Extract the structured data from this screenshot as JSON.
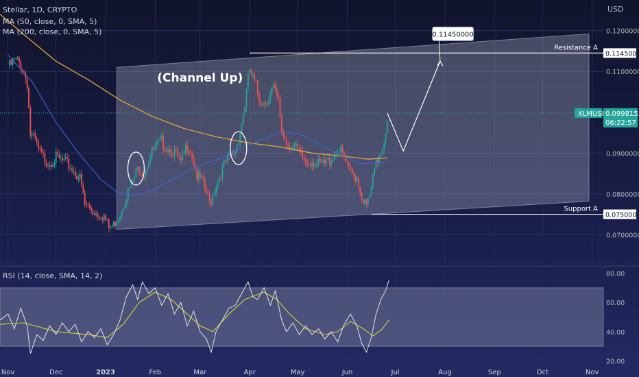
{
  "header": {
    "symbol_line": "Stellar, 1D, CRYPTO",
    "ma50_line": "MA (50, close, 0, SMA, 5)",
    "ma200_line": "MA (200, close, 0, SMA, 5)",
    "currency": "USD"
  },
  "rsi_header": "RSI (14, close, SMA, 14, 2)",
  "colors": {
    "background": "#151a3a",
    "up_candle": "#26a69a",
    "down_candle": "#ef5350",
    "ma50": "#3f63d8",
    "ma200": "#e8a33a",
    "rsi_line": "#e6e6e6",
    "rsi_ma": "#d9d230",
    "channel_fill": "#b4b9cc",
    "price_badge": "#26a69a"
  },
  "chart_data": [
    {
      "type": "candlestick",
      "title": "",
      "x_tick_labels": [
        "Nov",
        "Dec",
        "2023",
        "Feb",
        "Mar",
        "Apr",
        "May",
        "Jun",
        "Jul",
        "Aug",
        "Sep",
        "Oct",
        "Nov"
      ],
      "x_tick_days": [
        0,
        30,
        61,
        92,
        120,
        151,
        181,
        212,
        242,
        273,
        304,
        334,
        365
      ],
      "y_tick_labels": [
        "0.12000000",
        "0.11000000",
        "0.09000000",
        "0.08000000",
        "0.07000000"
      ],
      "y_ticks": [
        0.12,
        0.11,
        0.09,
        0.08,
        0.07
      ],
      "ylim": [
        0.0625,
        0.1275
      ],
      "xlim_days": [
        -5,
        372
      ],
      "ohlc_points": [
        {
          "day": 0,
          "close": 0.1115
        },
        {
          "day": 4,
          "close": 0.1135
        },
        {
          "day": 8,
          "close": 0.1128
        },
        {
          "day": 12,
          "close": 0.1085
        },
        {
          "day": 14,
          "close": 0.0955
        },
        {
          "day": 17,
          "close": 0.0935
        },
        {
          "day": 20,
          "close": 0.0905
        },
        {
          "day": 25,
          "close": 0.0885
        },
        {
          "day": 30,
          "close": 0.0895
        },
        {
          "day": 35,
          "close": 0.0885
        },
        {
          "day": 40,
          "close": 0.087
        },
        {
          "day": 45,
          "close": 0.0845
        },
        {
          "day": 48,
          "close": 0.078
        },
        {
          "day": 52,
          "close": 0.0768
        },
        {
          "day": 56,
          "close": 0.0758
        },
        {
          "day": 60,
          "close": 0.0752
        },
        {
          "day": 63,
          "close": 0.0722
        },
        {
          "day": 66,
          "close": 0.073
        },
        {
          "day": 70,
          "close": 0.076
        },
        {
          "day": 74,
          "close": 0.0805
        },
        {
          "day": 78,
          "close": 0.084
        },
        {
          "day": 82,
          "close": 0.0875
        },
        {
          "day": 85,
          "close": 0.0858
        },
        {
          "day": 88,
          "close": 0.0895
        },
        {
          "day": 92,
          "close": 0.092
        },
        {
          "day": 96,
          "close": 0.0935
        },
        {
          "day": 100,
          "close": 0.0922
        },
        {
          "day": 104,
          "close": 0.091
        },
        {
          "day": 108,
          "close": 0.0878
        },
        {
          "day": 112,
          "close": 0.093
        },
        {
          "day": 115,
          "close": 0.0905
        },
        {
          "day": 118,
          "close": 0.085
        },
        {
          "day": 121,
          "close": 0.0838
        },
        {
          "day": 124,
          "close": 0.081
        },
        {
          "day": 126,
          "close": 0.0782
        },
        {
          "day": 130,
          "close": 0.083
        },
        {
          "day": 134,
          "close": 0.087
        },
        {
          "day": 138,
          "close": 0.0895
        },
        {
          "day": 142,
          "close": 0.0915
        },
        {
          "day": 145,
          "close": 0.096
        },
        {
          "day": 148,
          "close": 0.103
        },
        {
          "day": 151,
          "close": 0.1115
        },
        {
          "day": 154,
          "close": 0.108
        },
        {
          "day": 157,
          "close": 0.1045
        },
        {
          "day": 160,
          "close": 0.1035
        },
        {
          "day": 163,
          "close": 0.105
        },
        {
          "day": 166,
          "close": 0.1065
        },
        {
          "day": 169,
          "close": 0.103
        },
        {
          "day": 171,
          "close": 0.0965
        },
        {
          "day": 174,
          "close": 0.0935
        },
        {
          "day": 178,
          "close": 0.0925
        },
        {
          "day": 182,
          "close": 0.0905
        },
        {
          "day": 186,
          "close": 0.0885
        },
        {
          "day": 190,
          "close": 0.089
        },
        {
          "day": 194,
          "close": 0.0878
        },
        {
          "day": 198,
          "close": 0.088
        },
        {
          "day": 202,
          "close": 0.0895
        },
        {
          "day": 206,
          "close": 0.092
        },
        {
          "day": 210,
          "close": 0.0895
        },
        {
          "day": 212,
          "close": 0.087
        },
        {
          "day": 215,
          "close": 0.0855
        },
        {
          "day": 218,
          "close": 0.085
        },
        {
          "day": 221,
          "close": 0.08
        },
        {
          "day": 224,
          "close": 0.0775
        },
        {
          "day": 227,
          "close": 0.082
        },
        {
          "day": 229,
          "close": 0.0865
        },
        {
          "day": 232,
          "close": 0.0905
        },
        {
          "day": 235,
          "close": 0.094
        },
        {
          "day": 237,
          "close": 0.0998
        }
      ],
      "ma50_points": [
        {
          "day": 0,
          "value": 0.114
        },
        {
          "day": 15,
          "value": 0.1075
        },
        {
          "day": 30,
          "value": 0.0975
        },
        {
          "day": 45,
          "value": 0.0895
        },
        {
          "day": 58,
          "value": 0.0835
        },
        {
          "day": 68,
          "value": 0.0805
        },
        {
          "day": 78,
          "value": 0.0795
        },
        {
          "day": 90,
          "value": 0.0808
        },
        {
          "day": 105,
          "value": 0.084
        },
        {
          "day": 120,
          "value": 0.087
        },
        {
          "day": 135,
          "value": 0.089
        },
        {
          "day": 148,
          "value": 0.0915
        },
        {
          "day": 160,
          "value": 0.0935
        },
        {
          "day": 170,
          "value": 0.0952
        },
        {
          "day": 182,
          "value": 0.0948
        },
        {
          "day": 195,
          "value": 0.092
        },
        {
          "day": 208,
          "value": 0.0895
        },
        {
          "day": 220,
          "value": 0.0875
        },
        {
          "day": 232,
          "value": 0.0875
        },
        {
          "day": 237,
          "value": 0.0878
        }
      ],
      "ma200_points": [
        {
          "day": -5,
          "value": 0.124
        },
        {
          "day": 10,
          "value": 0.119
        },
        {
          "day": 30,
          "value": 0.1125
        },
        {
          "day": 50,
          "value": 0.108
        },
        {
          "day": 70,
          "value": 0.103
        },
        {
          "day": 90,
          "value": 0.099
        },
        {
          "day": 110,
          "value": 0.096
        },
        {
          "day": 130,
          "value": 0.094
        },
        {
          "day": 150,
          "value": 0.0925
        },
        {
          "day": 170,
          "value": 0.0915
        },
        {
          "day": 190,
          "value": 0.09
        },
        {
          "day": 210,
          "value": 0.0892
        },
        {
          "day": 225,
          "value": 0.0885
        },
        {
          "day": 237,
          "value": 0.0888
        }
      ],
      "channel": {
        "upper_start": {
          "day": 68,
          "value": 0.111
        },
        "upper_end": {
          "day": 363,
          "value": 0.1192
        },
        "lower_start": {
          "day": 68,
          "value": 0.0713
        },
        "lower_end": {
          "day": 363,
          "value": 0.0782
        },
        "label": "(Channel Up)",
        "label_at": {
          "day": 120,
          "value": 0.1075
        }
      },
      "levels": [
        {
          "label": "Resistance A",
          "value": 0.1145,
          "value_label": "0.11450000",
          "from_day": 151
        },
        {
          "label": "Support A",
          "value": 0.075,
          "value_label": "0.07500000",
          "from_day": 227
        }
      ],
      "projection": {
        "points": [
          {
            "day": 237,
            "value": 0.0998
          },
          {
            "day": 247,
            "value": 0.0905
          },
          {
            "day": 270,
            "value": 0.1125
          }
        ],
        "target_label": "0.11450000",
        "target_at": {
          "day": 278,
          "value": 0.1192
        }
      },
      "highlight_circles": [
        {
          "day": 80,
          "value": 0.0862
        },
        {
          "day": 144,
          "value": 0.0912
        }
      ],
      "last_price": {
        "symbol": "XLMUSD",
        "value": 0.09981523,
        "value_label": "0.09981523",
        "countdown": "06:22:57"
      }
    },
    {
      "type": "line",
      "title": "",
      "y_tick_labels": [
        "80.00",
        "60.00",
        "40.00",
        "20.00"
      ],
      "y_ticks": [
        80,
        60,
        40,
        20
      ],
      "ylim": [
        16,
        84
      ],
      "band": [
        30,
        70
      ],
      "rsi_points": [
        {
          "day": -5,
          "value": 48
        },
        {
          "day": 0,
          "value": 52
        },
        {
          "day": 4,
          "value": 42
        },
        {
          "day": 8,
          "value": 56
        },
        {
          "day": 12,
          "value": 44
        },
        {
          "day": 14,
          "value": 25
        },
        {
          "day": 18,
          "value": 38
        },
        {
          "day": 22,
          "value": 34
        },
        {
          "day": 26,
          "value": 44
        },
        {
          "day": 30,
          "value": 38
        },
        {
          "day": 34,
          "value": 46
        },
        {
          "day": 38,
          "value": 40
        },
        {
          "day": 42,
          "value": 45
        },
        {
          "day": 46,
          "value": 33
        },
        {
          "day": 50,
          "value": 40
        },
        {
          "day": 54,
          "value": 36
        },
        {
          "day": 58,
          "value": 42
        },
        {
          "day": 62,
          "value": 31
        },
        {
          "day": 66,
          "value": 38
        },
        {
          "day": 70,
          "value": 48
        },
        {
          "day": 74,
          "value": 64
        },
        {
          "day": 78,
          "value": 72
        },
        {
          "day": 81,
          "value": 62
        },
        {
          "day": 84,
          "value": 74
        },
        {
          "day": 88,
          "value": 66
        },
        {
          "day": 92,
          "value": 70
        },
        {
          "day": 96,
          "value": 58
        },
        {
          "day": 100,
          "value": 66
        },
        {
          "day": 104,
          "value": 52
        },
        {
          "day": 108,
          "value": 60
        },
        {
          "day": 112,
          "value": 44
        },
        {
          "day": 116,
          "value": 54
        },
        {
          "day": 120,
          "value": 40
        },
        {
          "day": 124,
          "value": 35
        },
        {
          "day": 127,
          "value": 26
        },
        {
          "day": 130,
          "value": 40
        },
        {
          "day": 134,
          "value": 48
        },
        {
          "day": 138,
          "value": 56
        },
        {
          "day": 142,
          "value": 58
        },
        {
          "day": 146,
          "value": 66
        },
        {
          "day": 150,
          "value": 74
        },
        {
          "day": 153,
          "value": 64
        },
        {
          "day": 156,
          "value": 62
        },
        {
          "day": 160,
          "value": 70
        },
        {
          "day": 164,
          "value": 58
        },
        {
          "day": 167,
          "value": 68
        },
        {
          "day": 171,
          "value": 48
        },
        {
          "day": 174,
          "value": 40
        },
        {
          "day": 178,
          "value": 46
        },
        {
          "day": 182,
          "value": 38
        },
        {
          "day": 186,
          "value": 44
        },
        {
          "day": 190,
          "value": 38
        },
        {
          "day": 194,
          "value": 42
        },
        {
          "day": 198,
          "value": 35
        },
        {
          "day": 202,
          "value": 40
        },
        {
          "day": 206,
          "value": 33
        },
        {
          "day": 210,
          "value": 45
        },
        {
          "day": 214,
          "value": 52
        },
        {
          "day": 218,
          "value": 44
        },
        {
          "day": 221,
          "value": 32
        },
        {
          "day": 224,
          "value": 26
        },
        {
          "day": 227,
          "value": 36
        },
        {
          "day": 230,
          "value": 52
        },
        {
          "day": 233,
          "value": 62
        },
        {
          "day": 236,
          "value": 68
        },
        {
          "day": 238,
          "value": 75
        }
      ],
      "rsi_ma_points": [
        {
          "day": -5,
          "value": 45
        },
        {
          "day": 10,
          "value": 46
        },
        {
          "day": 30,
          "value": 40
        },
        {
          "day": 50,
          "value": 38
        },
        {
          "day": 62,
          "value": 36
        },
        {
          "day": 72,
          "value": 45
        },
        {
          "day": 82,
          "value": 60
        },
        {
          "day": 92,
          "value": 67
        },
        {
          "day": 102,
          "value": 62
        },
        {
          "day": 112,
          "value": 52
        },
        {
          "day": 120,
          "value": 44
        },
        {
          "day": 128,
          "value": 40
        },
        {
          "day": 138,
          "value": 52
        },
        {
          "day": 148,
          "value": 62
        },
        {
          "day": 160,
          "value": 67
        },
        {
          "day": 168,
          "value": 62
        },
        {
          "day": 176,
          "value": 52
        },
        {
          "day": 186,
          "value": 42
        },
        {
          "day": 198,
          "value": 38
        },
        {
          "day": 206,
          "value": 40
        },
        {
          "day": 214,
          "value": 47
        },
        {
          "day": 222,
          "value": 42
        },
        {
          "day": 228,
          "value": 37
        },
        {
          "day": 234,
          "value": 42
        },
        {
          "day": 238,
          "value": 48
        }
      ]
    }
  ]
}
